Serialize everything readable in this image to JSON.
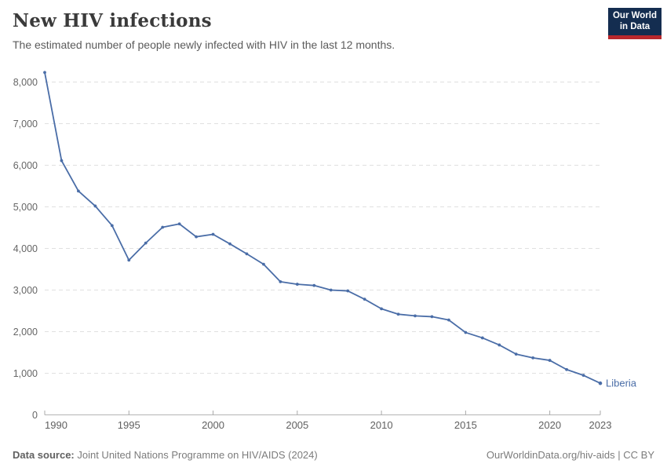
{
  "header": {
    "title": "New HIV infections",
    "subtitle": "The estimated number of people newly infected with HIV in the last 12 months."
  },
  "logo": {
    "line1": "Our World",
    "line2": "in Data",
    "bg_color": "#142D50",
    "bar_color": "#B9282D"
  },
  "chart_data": {
    "type": "line",
    "title": "New HIV infections",
    "entity": "Liberia",
    "line_color": "#4A6DA7",
    "grid": true,
    "legend_position": "end-of-line-label",
    "xlabel": "",
    "ylabel": "",
    "ylim": [
      0,
      8000
    ],
    "y_ticks": [
      0,
      1000,
      2000,
      3000,
      4000,
      5000,
      6000,
      7000,
      8000
    ],
    "y_tick_labels": [
      "0",
      "1,000",
      "2,000",
      "3,000",
      "4,000",
      "5,000",
      "6,000",
      "7,000",
      "8,000"
    ],
    "x_ticks": [
      1990,
      1995,
      2000,
      2005,
      2010,
      2015,
      2020,
      2023
    ],
    "x": [
      1990,
      1991,
      1992,
      1993,
      1994,
      1995,
      1996,
      1997,
      1998,
      1999,
      2000,
      2001,
      2002,
      2003,
      2004,
      2005,
      2006,
      2007,
      2008,
      2009,
      2010,
      2011,
      2012,
      2013,
      2014,
      2015,
      2016,
      2017,
      2018,
      2019,
      2020,
      2021,
      2022,
      2023
    ],
    "series": [
      {
        "name": "Liberia",
        "values": [
          8230,
          6110,
          5380,
          5020,
          4550,
          3720,
          4130,
          4510,
          4590,
          4280,
          4340,
          4110,
          3870,
          3620,
          3200,
          3140,
          3110,
          3000,
          2980,
          2780,
          2550,
          2420,
          2380,
          2360,
          2280,
          1980,
          1850,
          1680,
          1460,
          1370,
          1310,
          1090,
          950,
          760
        ]
      }
    ]
  },
  "footer": {
    "source_label": "Data source:",
    "source_text": " Joint United Nations Programme on HIV/AIDS (2024)",
    "right_text": "OurWorldinData.org/hiv-aids | CC BY"
  }
}
